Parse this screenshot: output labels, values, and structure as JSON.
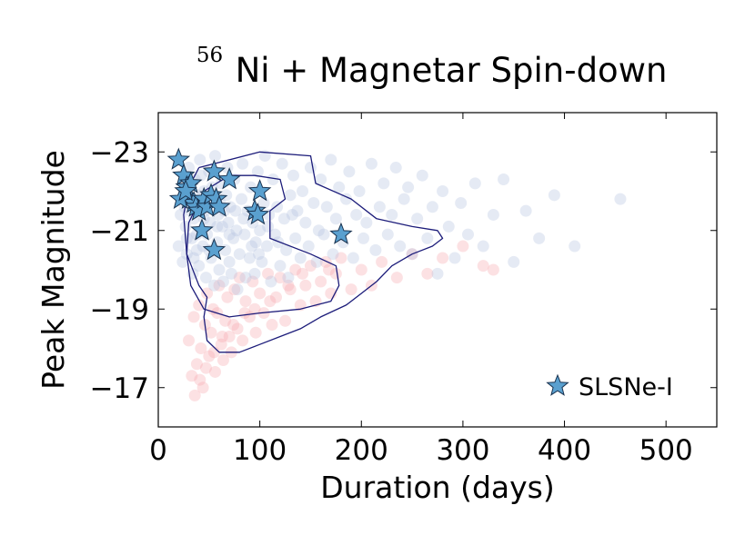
{
  "chart_data": {
    "type": "scatter",
    "title": {
      "superscript": "56",
      "text": "Ni + Magnetar Spin-down"
    },
    "xlabel": "Duration (days)",
    "ylabel": "Peak Magnitude",
    "xlim": [
      0,
      550
    ],
    "ylim": [
      -16,
      -24
    ],
    "y_inverted": true,
    "grid": false,
    "xticks": [
      0,
      100,
      200,
      300,
      400,
      500
    ],
    "xtick_labels": [
      "0",
      "100",
      "200",
      "300",
      "400",
      "500"
    ],
    "yticks": [
      -23,
      -21,
      -19,
      -17
    ],
    "ytick_labels": [
      "−23",
      "−21",
      "−19",
      "−17"
    ],
    "legend": {
      "position": "lower-right",
      "entries": [
        "SLSNe-I"
      ]
    },
    "colors": {
      "blue_cloud": "#b4c2e0",
      "red_cloud": "#f7a8ae",
      "contour": "#1c1c7a",
      "star_fill": "#5aa0cf",
      "star_edge": "#1a3350"
    },
    "series": [
      {
        "name": "SLSNe-I",
        "marker": "star",
        "points": [
          [
            20,
            -22.8
          ],
          [
            25,
            -22.4
          ],
          [
            28,
            -22.1
          ],
          [
            30,
            -21.8
          ],
          [
            32,
            -22.2
          ],
          [
            35,
            -21.7
          ],
          [
            37,
            -21.6
          ],
          [
            40,
            -21.5
          ],
          [
            43,
            -21.0
          ],
          [
            45,
            -21.8
          ],
          [
            48,
            -21.6
          ],
          [
            52,
            -21.9
          ],
          [
            55,
            -22.5
          ],
          [
            57,
            -21.8
          ],
          [
            60,
            -21.6
          ],
          [
            55,
            -20.5
          ],
          [
            70,
            -22.3
          ],
          [
            95,
            -21.5
          ],
          [
            98,
            -21.4
          ],
          [
            100,
            -22.0
          ],
          [
            180,
            -20.9
          ],
          [
            22,
            -21.8
          ],
          [
            27,
            -22.0
          ]
        ]
      },
      {
        "marker": "circle",
        "color_key": "blue_cloud",
        "points": [
          [
            20,
            -20.6
          ],
          [
            22,
            -21.4
          ],
          [
            24,
            -20.2
          ],
          [
            25,
            -22.0
          ],
          [
            27,
            -21.1
          ],
          [
            28,
            -20.4
          ],
          [
            30,
            -22.6
          ],
          [
            31,
            -21.7
          ],
          [
            33,
            -20.8
          ],
          [
            34,
            -19.9
          ],
          [
            35,
            -21.3
          ],
          [
            36,
            -22.3
          ],
          [
            38,
            -20.5
          ],
          [
            39,
            -21.9
          ],
          [
            40,
            -20.1
          ],
          [
            41,
            -22.8
          ],
          [
            42,
            -21.0
          ],
          [
            44,
            -20.6
          ],
          [
            45,
            -22.0
          ],
          [
            46,
            -21.5
          ],
          [
            47,
            -19.8
          ],
          [
            48,
            -20.9
          ],
          [
            50,
            -22.5
          ],
          [
            51,
            -21.2
          ],
          [
            52,
            -20.3
          ],
          [
            54,
            -21.8
          ],
          [
            55,
            -19.6
          ],
          [
            56,
            -22.9
          ],
          [
            58,
            -20.7
          ],
          [
            59,
            -21.4
          ],
          [
            60,
            -20.0
          ],
          [
            62,
            -22.2
          ],
          [
            63,
            -21.1
          ],
          [
            64,
            -19.7
          ],
          [
            66,
            -20.5
          ],
          [
            67,
            -21.9
          ],
          [
            68,
            -22.6
          ],
          [
            70,
            -20.2
          ],
          [
            71,
            -21.6
          ],
          [
            72,
            -19.9
          ],
          [
            74,
            -20.8
          ],
          [
            75,
            -22.3
          ],
          [
            77,
            -21.0
          ],
          [
            78,
            -19.5
          ],
          [
            80,
            -20.4
          ],
          [
            82,
            -21.8
          ],
          [
            83,
            -22.7
          ],
          [
            85,
            -20.9
          ],
          [
            86,
            -19.8
          ],
          [
            88,
            -21.5
          ],
          [
            90,
            -20.3
          ],
          [
            91,
            -22.1
          ],
          [
            93,
            -21.2
          ],
          [
            95,
            -19.9
          ],
          [
            96,
            -20.7
          ],
          [
            98,
            -22.5
          ],
          [
            100,
            -21.0
          ],
          [
            102,
            -20.2
          ],
          [
            104,
            -21.7
          ],
          [
            105,
            -22.9
          ],
          [
            107,
            -20.6
          ],
          [
            109,
            -21.4
          ],
          [
            111,
            -19.7
          ],
          [
            113,
            -22.3
          ],
          [
            115,
            -20.9
          ],
          [
            117,
            -21.6
          ],
          [
            120,
            -20.1
          ],
          [
            122,
            -22.7
          ],
          [
            124,
            -21.3
          ],
          [
            126,
            -20.5
          ],
          [
            128,
            -19.8
          ],
          [
            130,
            -21.9
          ],
          [
            133,
            -22.4
          ],
          [
            135,
            -20.8
          ],
          [
            137,
            -21.5
          ],
          [
            140,
            -20.3
          ],
          [
            142,
            -22.0
          ],
          [
            145,
            -21.2
          ],
          [
            148,
            -20.6
          ],
          [
            150,
            -22.6
          ],
          [
            153,
            -21.7
          ],
          [
            156,
            -20.2
          ],
          [
            158,
            -21.0
          ],
          [
            160,
            -22.3
          ],
          [
            163,
            -20.9
          ],
          [
            166,
            -21.6
          ],
          [
            170,
            -22.8
          ],
          [
            172,
            -20.4
          ],
          [
            175,
            -21.3
          ],
          [
            178,
            -22.1
          ],
          [
            182,
            -20.7
          ],
          [
            185,
            -21.8
          ],
          [
            188,
            -22.5
          ],
          [
            192,
            -20.3
          ],
          [
            195,
            -21.4
          ],
          [
            198,
            -22.0
          ],
          [
            202,
            -20.8
          ],
          [
            205,
            -21.2
          ],
          [
            210,
            -22.7
          ],
          [
            214,
            -20.5
          ],
          [
            218,
            -21.6
          ],
          [
            222,
            -22.2
          ],
          [
            226,
            -20.9
          ],
          [
            230,
            -21.4
          ],
          [
            234,
            -22.6
          ],
          [
            238,
            -20.6
          ],
          [
            242,
            -21.8
          ],
          [
            246,
            -22.1
          ],
          [
            250,
            -20.4
          ],
          [
            255,
            -21.3
          ],
          [
            260,
            -22.4
          ],
          [
            265,
            -20.8
          ],
          [
            270,
            -21.6
          ],
          [
            275,
            -19.9
          ],
          [
            280,
            -22.0
          ],
          [
            286,
            -21.1
          ],
          [
            292,
            -20.3
          ],
          [
            298,
            -21.7
          ],
          [
            305,
            -20.9
          ],
          [
            312,
            -22.2
          ],
          [
            320,
            -20.6
          ],
          [
            330,
            -21.4
          ],
          [
            340,
            -22.3
          ],
          [
            350,
            -20.2
          ],
          [
            362,
            -21.5
          ],
          [
            375,
            -20.8
          ],
          [
            390,
            -21.9
          ],
          [
            410,
            -20.6
          ],
          [
            455,
            -21.8
          ],
          [
            70,
            -20.9
          ],
          [
            65,
            -21.5
          ],
          [
            58,
            -21.1
          ],
          [
            50,
            -20.5
          ],
          [
            45,
            -21.3
          ],
          [
            38,
            -20.9
          ],
          [
            32,
            -21.5
          ],
          [
            28,
            -20.8
          ],
          [
            26,
            -21.6
          ],
          [
            35,
            -20.3
          ],
          [
            42,
            -22.4
          ],
          [
            53,
            -22.1
          ],
          [
            61,
            -21.7
          ],
          [
            69,
            -21.2
          ],
          [
            76,
            -21.5
          ],
          [
            84,
            -21.3
          ],
          [
            92,
            -20.6
          ],
          [
            99,
            -20.4
          ],
          [
            108,
            -21.1
          ],
          [
            118,
            -20.7
          ],
          [
            132,
            -21.4
          ]
        ]
      },
      {
        "marker": "circle",
        "color_key": "red_cloud",
        "points": [
          [
            30,
            -18.2
          ],
          [
            33,
            -17.3
          ],
          [
            35,
            -18.8
          ],
          [
            38,
            -17.6
          ],
          [
            40,
            -19.1
          ],
          [
            42,
            -18.0
          ],
          [
            44,
            -17.0
          ],
          [
            46,
            -18.6
          ],
          [
            48,
            -19.4
          ],
          [
            50,
            -17.8
          ],
          [
            52,
            -18.4
          ],
          [
            54,
            -19.0
          ],
          [
            56,
            -17.4
          ],
          [
            58,
            -18.9
          ],
          [
            60,
            -19.6
          ],
          [
            62,
            -18.1
          ],
          [
            64,
            -17.7
          ],
          [
            66,
            -18.7
          ],
          [
            68,
            -19.3
          ],
          [
            70,
            -18.3
          ],
          [
            72,
            -17.9
          ],
          [
            75,
            -19.5
          ],
          [
            78,
            -18.5
          ],
          [
            80,
            -19.8
          ],
          [
            83,
            -18.2
          ],
          [
            86,
            -19.2
          ],
          [
            90,
            -18.8
          ],
          [
            93,
            -19.7
          ],
          [
            96,
            -18.4
          ],
          [
            100,
            -19.4
          ],
          [
            104,
            -18.9
          ],
          [
            108,
            -19.9
          ],
          [
            112,
            -18.6
          ],
          [
            116,
            -19.3
          ],
          [
            120,
            -19.8
          ],
          [
            125,
            -18.7
          ],
          [
            130,
            -19.5
          ],
          [
            135,
            -20.0
          ],
          [
            140,
            -19.1
          ],
          [
            145,
            -19.6
          ],
          [
            150,
            -20.1
          ],
          [
            155,
            -19.2
          ],
          [
            160,
            -19.7
          ],
          [
            165,
            -20.2
          ],
          [
            170,
            -19.4
          ],
          [
            175,
            -19.9
          ],
          [
            180,
            -20.3
          ],
          [
            190,
            -19.5
          ],
          [
            200,
            -20.0
          ],
          [
            210,
            -19.6
          ],
          [
            220,
            -20.2
          ],
          [
            235,
            -19.8
          ],
          [
            250,
            -20.4
          ],
          [
            265,
            -19.9
          ],
          [
            280,
            -20.3
          ],
          [
            300,
            -20.6
          ],
          [
            320,
            -20.1
          ],
          [
            330,
            -20.0
          ],
          [
            36,
            -16.8
          ],
          [
            41,
            -17.2
          ],
          [
            47,
            -17.5
          ],
          [
            55,
            -17.9
          ],
          [
            63,
            -18.3
          ],
          [
            74,
            -18.6
          ],
          [
            85,
            -18.9
          ],
          [
            95,
            -19.0
          ],
          [
            110,
            -19.2
          ],
          [
            128,
            -19.6
          ],
          [
            142,
            -19.9
          ],
          [
            168,
            -20.0
          ]
        ]
      }
    ],
    "contours": [
      {
        "level": "outer",
        "points": [
          [
            40,
            -22.6
          ],
          [
            100,
            -23.0
          ],
          [
            150,
            -22.9
          ],
          [
            155,
            -22.2
          ],
          [
            190,
            -21.8
          ],
          [
            215,
            -21.3
          ],
          [
            250,
            -21.1
          ],
          [
            275,
            -21.0
          ],
          [
            280,
            -20.8
          ],
          [
            270,
            -20.6
          ],
          [
            250,
            -20.4
          ],
          [
            230,
            -20.1
          ],
          [
            215,
            -19.7
          ],
          [
            200,
            -19.4
          ],
          [
            185,
            -19.1
          ],
          [
            160,
            -18.8
          ],
          [
            140,
            -18.5
          ],
          [
            120,
            -18.3
          ],
          [
            100,
            -18.1
          ],
          [
            80,
            -17.9
          ],
          [
            60,
            -17.9
          ],
          [
            48,
            -18.2
          ],
          [
            45,
            -18.8
          ],
          [
            48,
            -19.3
          ],
          [
            40,
            -19.6
          ],
          [
            28,
            -20.4
          ],
          [
            25,
            -21.4
          ],
          [
            30,
            -22.1
          ],
          [
            40,
            -22.6
          ]
        ]
      },
      {
        "level": "inner",
        "points": [
          [
            45,
            -22.0
          ],
          [
            70,
            -22.4
          ],
          [
            95,
            -22.4
          ],
          [
            120,
            -22.3
          ],
          [
            125,
            -21.8
          ],
          [
            110,
            -21.5
          ],
          [
            110,
            -20.8
          ],
          [
            150,
            -20.4
          ],
          [
            175,
            -20.1
          ],
          [
            178,
            -19.6
          ],
          [
            170,
            -19.2
          ],
          [
            140,
            -19.0
          ],
          [
            100,
            -18.9
          ],
          [
            70,
            -18.8
          ],
          [
            45,
            -19.0
          ],
          [
            32,
            -19.6
          ],
          [
            28,
            -20.4
          ],
          [
            30,
            -21.2
          ],
          [
            45,
            -22.0
          ]
        ]
      }
    ]
  }
}
